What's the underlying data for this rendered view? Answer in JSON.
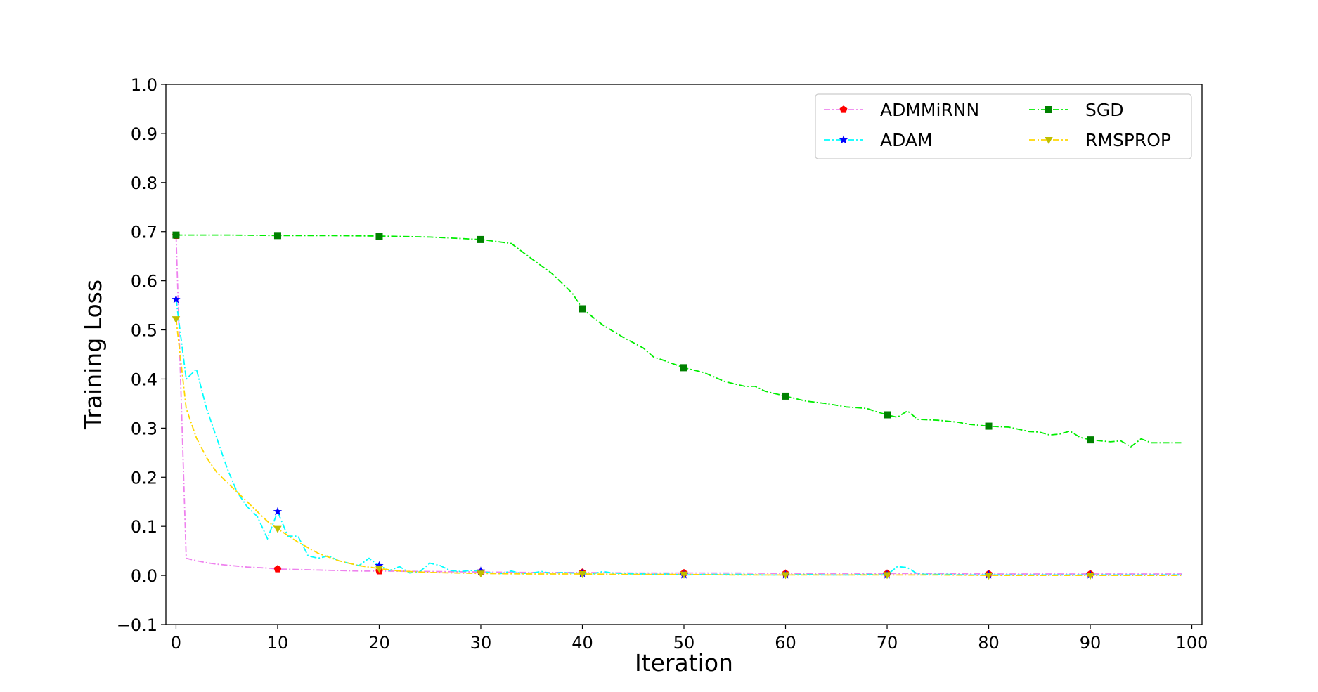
{
  "chart_data": {
    "type": "line",
    "title": "",
    "xlabel": "Iteration",
    "ylabel": "Training Loss",
    "xlim": [
      -1,
      101
    ],
    "ylim": [
      -0.1,
      1.0
    ],
    "xticks": [
      "0",
      "10",
      "20",
      "30",
      "40",
      "50",
      "60",
      "70",
      "80",
      "90",
      "100"
    ],
    "yticks": [
      "−0.1",
      "0.0",
      "0.1",
      "0.2",
      "0.3",
      "0.4",
      "0.5",
      "0.6",
      "0.7",
      "0.8",
      "0.9",
      "1.0"
    ],
    "grid": false,
    "legend_position": "top-right",
    "series": [
      {
        "name": "ADMMiRNN",
        "color": "#ee82ee",
        "marker_color": "#ff0000",
        "marker": "pentagon",
        "points": [
          [
            0,
            0.692
          ],
          [
            1,
            0.035
          ],
          [
            2,
            0.03
          ],
          [
            3,
            0.026
          ],
          [
            4,
            0.023
          ],
          [
            5,
            0.021
          ],
          [
            6,
            0.019
          ],
          [
            7,
            0.017
          ],
          [
            8,
            0.016
          ],
          [
            9,
            0.015
          ],
          [
            10,
            0.013
          ],
          [
            12,
            0.012
          ],
          [
            14,
            0.011
          ],
          [
            16,
            0.01
          ],
          [
            18,
            0.009
          ],
          [
            20,
            0.009
          ],
          [
            25,
            0.008
          ],
          [
            30,
            0.007
          ],
          [
            35,
            0.006
          ],
          [
            40,
            0.006
          ],
          [
            45,
            0.005
          ],
          [
            50,
            0.005
          ],
          [
            55,
            0.005
          ],
          [
            60,
            0.004
          ],
          [
            65,
            0.004
          ],
          [
            70,
            0.004
          ],
          [
            75,
            0.004
          ],
          [
            80,
            0.003
          ],
          [
            85,
            0.003
          ],
          [
            90,
            0.003
          ],
          [
            95,
            0.003
          ],
          [
            99,
            0.003
          ]
        ]
      },
      {
        "name": "ADAM",
        "color": "#00ffff",
        "marker_color": "#0000ff",
        "marker": "star",
        "points": [
          [
            0,
            0.562
          ],
          [
            1,
            0.4
          ],
          [
            2,
            0.42
          ],
          [
            3,
            0.34
          ],
          [
            4,
            0.28
          ],
          [
            5,
            0.22
          ],
          [
            6,
            0.17
          ],
          [
            7,
            0.14
          ],
          [
            8,
            0.12
          ],
          [
            9,
            0.075
          ],
          [
            10,
            0.13
          ],
          [
            11,
            0.08
          ],
          [
            12,
            0.08
          ],
          [
            13,
            0.04
          ],
          [
            14,
            0.035
          ],
          [
            15,
            0.04
          ],
          [
            16,
            0.03
          ],
          [
            17,
            0.025
          ],
          [
            18,
            0.02
          ],
          [
            19,
            0.035
          ],
          [
            20,
            0.02
          ],
          [
            21,
            0.01
          ],
          [
            22,
            0.018
          ],
          [
            23,
            0.005
          ],
          [
            24,
            0.008
          ],
          [
            25,
            0.025
          ],
          [
            26,
            0.02
          ],
          [
            27,
            0.01
          ],
          [
            28,
            0.008
          ],
          [
            29,
            0.01
          ],
          [
            30,
            0.009
          ],
          [
            31,
            0.005
          ],
          [
            32,
            0.004
          ],
          [
            33,
            0.009
          ],
          [
            34,
            0.004
          ],
          [
            35,
            0.005
          ],
          [
            36,
            0.008
          ],
          [
            37,
            0.004
          ],
          [
            38,
            0.006
          ],
          [
            39,
            0.005
          ],
          [
            40,
            0.004
          ],
          [
            41,
            0.003
          ],
          [
            42,
            0.008
          ],
          [
            43,
            0.005
          ],
          [
            44,
            0.004
          ],
          [
            45,
            0.003
          ],
          [
            46,
            0.003
          ],
          [
            47,
            0.002
          ],
          [
            48,
            0.003
          ],
          [
            49,
            0.002
          ],
          [
            50,
            0.001
          ],
          [
            52,
            0.002
          ],
          [
            54,
            0.002
          ],
          [
            56,
            0.002
          ],
          [
            58,
            0.001
          ],
          [
            60,
            0.001
          ],
          [
            62,
            0.002
          ],
          [
            64,
            0.001
          ],
          [
            66,
            0.001
          ],
          [
            68,
            0.002
          ],
          [
            70,
            0.001
          ],
          [
            71,
            0.018
          ],
          [
            72,
            0.016
          ],
          [
            73,
            0.003
          ],
          [
            74,
            0.002
          ],
          [
            76,
            0.002
          ],
          [
            78,
            0.001
          ],
          [
            80,
            0.001
          ],
          [
            82,
            0.001
          ],
          [
            84,
            0.001
          ],
          [
            86,
            0.001
          ],
          [
            88,
            0.001
          ],
          [
            90,
            0.001
          ],
          [
            92,
            0.001
          ],
          [
            94,
            0.001
          ],
          [
            96,
            0.001
          ],
          [
            99,
            0.001
          ]
        ]
      },
      {
        "name": "SGD",
        "color": "#00ee00",
        "marker_color": "#008000",
        "marker": "square",
        "points": [
          [
            0,
            0.693
          ],
          [
            5,
            0.693
          ],
          [
            10,
            0.692
          ],
          [
            15,
            0.692
          ],
          [
            20,
            0.691
          ],
          [
            25,
            0.689
          ],
          [
            30,
            0.684
          ],
          [
            33,
            0.676
          ],
          [
            35,
            0.645
          ],
          [
            37,
            0.615
          ],
          [
            39,
            0.575
          ],
          [
            40,
            0.543
          ],
          [
            42,
            0.51
          ],
          [
            44,
            0.485
          ],
          [
            46,
            0.463
          ],
          [
            47,
            0.445
          ],
          [
            48,
            0.438
          ],
          [
            50,
            0.423
          ],
          [
            52,
            0.413
          ],
          [
            54,
            0.395
          ],
          [
            56,
            0.385
          ],
          [
            57,
            0.385
          ],
          [
            58,
            0.375
          ],
          [
            60,
            0.365
          ],
          [
            62,
            0.355
          ],
          [
            64,
            0.35
          ],
          [
            66,
            0.343
          ],
          [
            68,
            0.34
          ],
          [
            69,
            0.333
          ],
          [
            70,
            0.327
          ],
          [
            71,
            0.322
          ],
          [
            72,
            0.335
          ],
          [
            73,
            0.318
          ],
          [
            75,
            0.316
          ],
          [
            77,
            0.312
          ],
          [
            78,
            0.308
          ],
          [
            80,
            0.304
          ],
          [
            82,
            0.302
          ],
          [
            84,
            0.293
          ],
          [
            85,
            0.292
          ],
          [
            86,
            0.286
          ],
          [
            87,
            0.288
          ],
          [
            88,
            0.294
          ],
          [
            89,
            0.281
          ],
          [
            90,
            0.276
          ],
          [
            92,
            0.272
          ],
          [
            93,
            0.274
          ],
          [
            94,
            0.262
          ],
          [
            95,
            0.278
          ],
          [
            96,
            0.27
          ],
          [
            97,
            0.27
          ],
          [
            99,
            0.27
          ]
        ]
      },
      {
        "name": "RMSPROP",
        "color": "#ffd700",
        "marker_color": "#bfbf00",
        "marker": "triangle-down",
        "points": [
          [
            0,
            0.522
          ],
          [
            1,
            0.34
          ],
          [
            2,
            0.28
          ],
          [
            3,
            0.24
          ],
          [
            4,
            0.21
          ],
          [
            5,
            0.19
          ],
          [
            6,
            0.17
          ],
          [
            7,
            0.15
          ],
          [
            8,
            0.13
          ],
          [
            9,
            0.11
          ],
          [
            10,
            0.095
          ],
          [
            12,
            0.068
          ],
          [
            14,
            0.045
          ],
          [
            16,
            0.03
          ],
          [
            18,
            0.02
          ],
          [
            20,
            0.014
          ],
          [
            22,
            0.009
          ],
          [
            25,
            0.006
          ],
          [
            30,
            0.004
          ],
          [
            35,
            0.003
          ],
          [
            40,
            0.003
          ],
          [
            45,
            0.002
          ],
          [
            50,
            0.002
          ],
          [
            55,
            0.001
          ],
          [
            60,
            0.001
          ],
          [
            65,
            0.001
          ],
          [
            70,
            0.001
          ],
          [
            75,
            0.001
          ],
          [
            80,
            0.0
          ],
          [
            85,
            0.0
          ],
          [
            90,
            0.0
          ],
          [
            95,
            0.0
          ],
          [
            99,
            0.0
          ]
        ]
      }
    ],
    "markers_every": 10
  }
}
